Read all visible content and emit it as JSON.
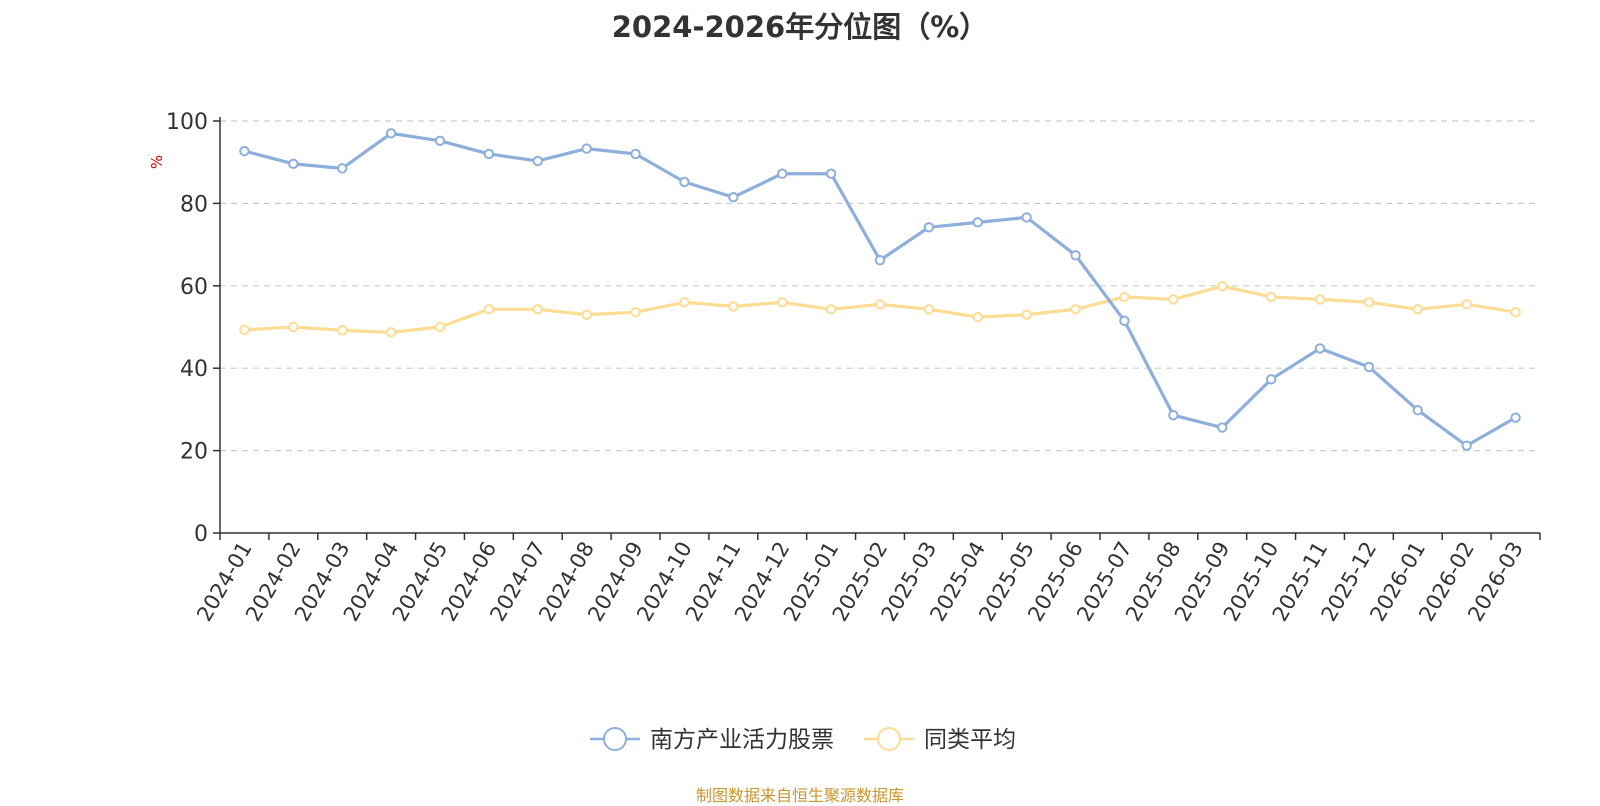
{
  "title": "2024-2026年分位图（%）",
  "source": "制图数据来自恒生聚源数据库",
  "colors": {
    "fund": "#8eaedc",
    "avg": "#fddc94",
    "unit": "#e00000",
    "axis": "#333333",
    "grid": "#cccccc"
  },
  "chart_data": {
    "type": "line",
    "ylabel": "%",
    "ylim": [
      0,
      100
    ],
    "yticks": [
      0,
      20,
      40,
      60,
      80,
      100
    ],
    "grid": true,
    "legend_position": "bottom-center",
    "x": [
      "2024-01",
      "2024-02",
      "2024-03",
      "2024-04",
      "2024-05",
      "2024-06",
      "2024-07",
      "2024-08",
      "2024-09",
      "2024-10",
      "2024-11",
      "2024-12",
      "2025-01",
      "2025-02",
      "2025-03",
      "2025-04",
      "2025-05",
      "2025-06",
      "2025-07",
      "2025-08",
      "2025-09",
      "2025-10",
      "2025-11",
      "2025-12",
      "2026-01",
      "2026-02",
      "2026-03"
    ],
    "series": [
      {
        "name": "南方产业活力股票",
        "values": [
          92.7,
          89.6,
          88.5,
          97.0,
          95.2,
          92.0,
          90.3,
          93.3,
          92.0,
          85.2,
          81.5,
          87.2,
          87.2,
          66.2,
          74.2,
          75.4,
          76.6,
          67.4,
          51.5,
          28.6,
          25.6,
          37.3,
          44.8,
          40.3,
          29.8,
          21.2,
          28.0
        ]
      },
      {
        "name": "同类平均",
        "values": [
          49.3,
          50.0,
          49.2,
          48.7,
          50.0,
          54.3,
          54.3,
          53.0,
          53.6,
          56.0,
          55.0,
          56.0,
          54.3,
          55.5,
          54.3,
          52.4,
          53.0,
          54.3,
          57.3,
          56.7,
          59.9,
          57.3,
          56.7,
          56.0,
          54.3,
          55.5,
          53.6
        ]
      }
    ]
  }
}
